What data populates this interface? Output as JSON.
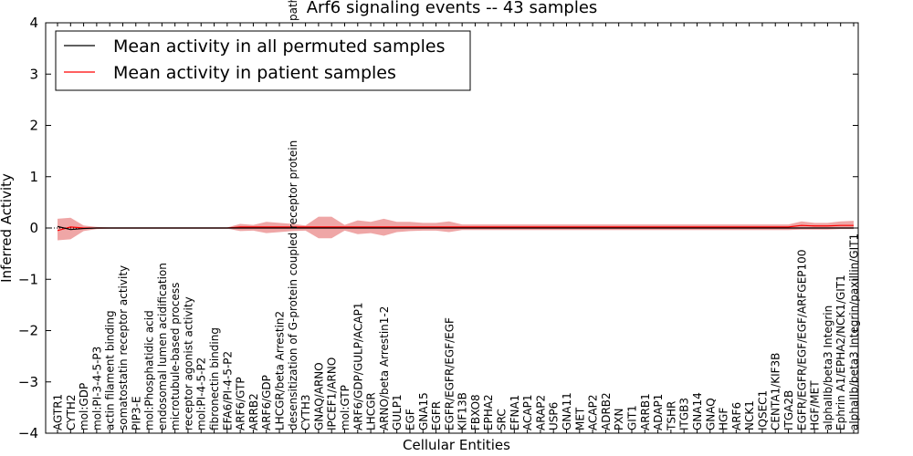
{
  "chart_data": {
    "type": "line",
    "title": "Arf6 signaling events -- 43 samples",
    "xlabel": "Cellular Entities",
    "ylabel": "Inferred Activity",
    "ylim": [
      -4,
      4
    ],
    "yticks": [
      -4,
      -3,
      -2,
      -1,
      0,
      1,
      2,
      3,
      4
    ],
    "legend_position": "top-left",
    "colors": {
      "permuted": "#000000",
      "patient": "#ff0000",
      "patient_band": "#e88080",
      "permuted_band": "#bfbfbf"
    },
    "categories": [
      "AGTR1",
      "CYTH2",
      "mol:GDP",
      "mol:PI-3-4-5-P3",
      "actin filament binding",
      "somatostatin receptor activity",
      "PIP3-E",
      "mol:Phosphatidic acid",
      "endosomal lumen acidification",
      "microtubule-based process",
      "receptor agonist activity",
      "mol:PI-4-5-P2",
      "fibronectin binding",
      "EFA6/PI-4-5-P2",
      "ARF6/GTP",
      "ARRB2",
      "ARF6/GDP",
      "LHCGR/beta Arrestin2",
      "desensitization of G-protein coupled receptor protein",
      "CYTH3",
      "GNAQ/ARNO",
      "IPCEF1/ARNO",
      "mol:GTP",
      "ARF6/GDP/GULP/ACAP1",
      "LHCGR",
      "ARNO/beta Arrestin1-2",
      "GULP1",
      "EGF",
      "GNA15",
      "EGFR",
      "EGFR/EGFR/EGF/EGF",
      "KIF13B",
      "FBXO8",
      "EPHA2",
      "SRC",
      "EFNA1",
      "ACAP1",
      "ARAP2",
      "USP6",
      "GNA11",
      "MET",
      "ACAP2",
      "ADRB2",
      "PXN",
      "GIT1",
      "ARRB1",
      "ADAP1",
      "TSHR",
      "ITGB3",
      "GNA14",
      "GNAQ",
      "HGF",
      "ARF6",
      "NCK1",
      "IQSEC1",
      "CENTA1/KIF3B",
      "ITGA2B",
      "EGFR/EGFR/EGF/EGF/ARFGEP100",
      "HGF/MET",
      "alphaIIb/beta3 Integrin",
      "Ephrin A1/EPHA2/NCK1/GIT1",
      "alphaIIb/beta3 Integrin/paxillin/GIT1"
    ],
    "truncated_label_prefix": "path",
    "series": [
      {
        "name": "Mean activity in all permuted samples",
        "values": [
          0.03,
          -0.03,
          -0.01,
          0,
          0,
          0,
          0,
          0,
          0,
          0,
          0,
          0,
          0,
          0,
          0,
          0,
          0,
          0,
          0,
          0,
          0,
          0,
          0,
          0,
          0,
          0,
          0,
          0,
          0,
          0,
          0,
          0,
          0,
          0,
          0,
          0,
          0,
          0,
          0,
          0,
          0,
          0,
          0,
          0,
          0,
          0,
          0,
          0,
          0,
          0,
          0,
          0,
          0,
          0,
          0,
          0,
          0,
          0,
          0,
          0,
          0,
          0
        ]
      },
      {
        "name": "Mean activity in patient samples",
        "values": [
          -0.05,
          0.02,
          0,
          0,
          0,
          0,
          0,
          0,
          0,
          0,
          0,
          0,
          0,
          0,
          0.02,
          0.02,
          0.02,
          0.02,
          0.02,
          0.02,
          0.02,
          0.02,
          0.02,
          0.02,
          0.02,
          0.02,
          0.02,
          0.02,
          0.02,
          0.02,
          0.02,
          0.02,
          0.02,
          0.02,
          0.02,
          0.02,
          0.02,
          0.02,
          0.02,
          0.02,
          0.02,
          0.02,
          0.02,
          0.02,
          0.02,
          0.02,
          0.02,
          0.02,
          0.02,
          0.02,
          0.02,
          0.02,
          0.02,
          0.02,
          0.02,
          0.02,
          0.02,
          0.05,
          0.04,
          0.04,
          0.05,
          0.05
        ],
        "band_upper": [
          0.18,
          0.2,
          0.05,
          0.02,
          0.01,
          0.01,
          0.01,
          0.01,
          0.01,
          0.01,
          0.01,
          0.01,
          0.01,
          0.01,
          0.08,
          0.06,
          0.12,
          0.1,
          0.08,
          0.05,
          0.22,
          0.22,
          0.06,
          0.15,
          0.12,
          0.18,
          0.12,
          0.12,
          0.1,
          0.1,
          0.13,
          0.07,
          0.07,
          0.07,
          0.07,
          0.07,
          0.07,
          0.07,
          0.07,
          0.07,
          0.07,
          0.07,
          0.07,
          0.07,
          0.07,
          0.07,
          0.07,
          0.07,
          0.07,
          0.07,
          0.07,
          0.07,
          0.07,
          0.07,
          0.07,
          0.07,
          0.07,
          0.13,
          0.1,
          0.1,
          0.13,
          0.14
        ],
        "band_lower": [
          -0.24,
          -0.22,
          -0.06,
          -0.02,
          -0.01,
          -0.01,
          -0.01,
          -0.01,
          -0.01,
          -0.01,
          -0.01,
          -0.01,
          -0.01,
          -0.01,
          -0.06,
          -0.05,
          -0.1,
          -0.08,
          -0.06,
          -0.05,
          -0.2,
          -0.2,
          -0.05,
          -0.12,
          -0.1,
          -0.15,
          -0.08,
          -0.06,
          -0.05,
          -0.05,
          -0.08,
          -0.04,
          -0.04,
          -0.04,
          -0.04,
          -0.04,
          -0.04,
          -0.04,
          -0.04,
          -0.04,
          -0.04,
          -0.04,
          -0.04,
          -0.04,
          -0.04,
          -0.04,
          -0.04,
          -0.04,
          -0.04,
          -0.04,
          -0.04,
          -0.04,
          -0.04,
          -0.04,
          -0.04,
          -0.04,
          -0.04,
          -0.03,
          -0.03,
          -0.03,
          -0.02,
          -0.02
        ]
      }
    ]
  }
}
